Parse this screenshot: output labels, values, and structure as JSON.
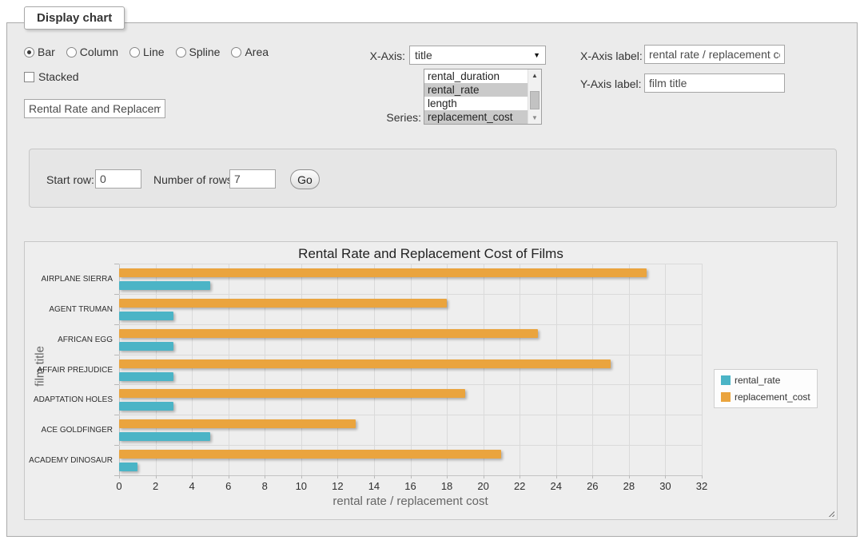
{
  "fieldset": {
    "legend": "Display chart"
  },
  "chart_type_options": [
    {
      "label": "Bar",
      "selected": true
    },
    {
      "label": "Column",
      "selected": false
    },
    {
      "label": "Line",
      "selected": false
    },
    {
      "label": "Spline",
      "selected": false
    },
    {
      "label": "Area",
      "selected": false
    }
  ],
  "stacked": {
    "label": "Stacked",
    "checked": false
  },
  "title_input": {
    "value": "Rental Rate and Replacement Cost of Films"
  },
  "x_axis": {
    "label": "X-Axis:",
    "selected": "title",
    "arrow_icon": "▼"
  },
  "series_select": {
    "label": "Series:",
    "options": [
      {
        "label": "rental_duration",
        "selected": false
      },
      {
        "label": "rental_rate",
        "selected": true
      },
      {
        "label": "length",
        "selected": false
      },
      {
        "label": "replacement_cost",
        "selected": true
      }
    ],
    "scroll_up_icon": "▲",
    "scroll_down_icon": "▼"
  },
  "x_axis_label": {
    "label": "X-Axis label:",
    "value": "rental rate / replacement cost"
  },
  "y_axis_label": {
    "label": "Y-Axis label:",
    "value": "film title"
  },
  "row_controls": {
    "start_row_label": "Start row:",
    "start_row_value": "0",
    "num_rows_label": "Number of rows:",
    "num_rows_value": "7",
    "go_label": "Go"
  },
  "chart_data": {
    "type": "bar",
    "title": "Rental Rate and Replacement Cost of Films",
    "xlabel": "rental rate / replacement cost",
    "ylabel": "film title",
    "categories": [
      "AIRPLANE SIERRA",
      "AGENT TRUMAN",
      "AFRICAN EGG",
      "AFFAIR PREJUDICE",
      "ADAPTATION HOLES",
      "ACE GOLDFINGER",
      "ACADEMY DINOSAUR"
    ],
    "series": [
      {
        "name": "rental_rate",
        "color": "#4BB4C6",
        "values": [
          4.99,
          2.99,
          2.99,
          2.99,
          2.99,
          4.99,
          0.99
        ]
      },
      {
        "name": "replacement_cost",
        "color": "#EAA43E",
        "values": [
          28.99,
          17.99,
          22.99,
          26.99,
          18.99,
          12.99,
          20.99
        ]
      }
    ],
    "xlim": [
      0,
      32
    ],
    "x_tick_step": 2,
    "grid": true,
    "legend_position": "right",
    "group_draw_order": [
      1,
      0
    ]
  }
}
